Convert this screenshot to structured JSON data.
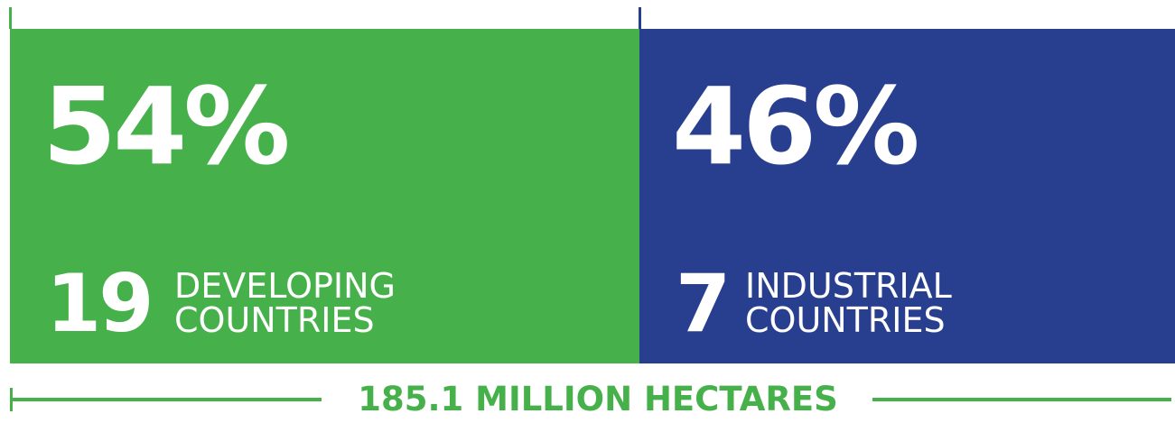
{
  "chart_data": {
    "type": "bar",
    "title": "",
    "segments": [
      {
        "name": "DEVELOPING COUNTRIES",
        "value": 54,
        "display": "54%",
        "count": "19",
        "label_lines": [
          "DEVELOPING",
          "COUNTRIES"
        ],
        "color": "#46b04a"
      },
      {
        "name": "INDUSTRIAL COUNTRIES",
        "value": 46,
        "display": "46%",
        "count": "7",
        "label_lines": [
          "INDUSTRIAL",
          "COUNTRIES"
        ],
        "color": "#283f8f"
      }
    ],
    "total_label": "185.1 MILLION HECTARES",
    "total_color": "#46b04a"
  }
}
